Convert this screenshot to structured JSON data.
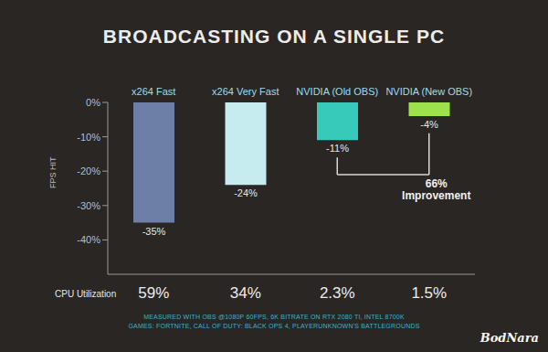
{
  "chart_data": {
    "type": "bar",
    "title": "BROADCASTING ON A SINGLE PC",
    "y_label": "FPS HIT",
    "categories": [
      "x264 Fast",
      "x264 Very Fast",
      "NVIDIA (Old OBS)",
      "NVIDIA (New OBS)"
    ],
    "values": [
      -35,
      -24,
      -11,
      -4
    ],
    "value_labels": [
      "-35%",
      "-24%",
      "-11%",
      "-4%"
    ],
    "colors": [
      "#6d7fa6",
      "#c6ecf0",
      "#37c9b9",
      "#9de24c"
    ],
    "ylim": [
      -50,
      0
    ],
    "yticks": [
      {
        "value": 0,
        "label": "0%"
      },
      {
        "value": -10,
        "label": "-10%"
      },
      {
        "value": -20,
        "label": "-20%"
      },
      {
        "value": -30,
        "label": "-30%"
      },
      {
        "value": -40,
        "label": "-40%"
      }
    ],
    "grid": false,
    "data_labels": true,
    "annotation": [
      "66%",
      "Improvement"
    ],
    "cpu_utilization": {
      "label": "CPU Utilization",
      "values": [
        59,
        34,
        2.3,
        1.5
      ],
      "value_labels": [
        "59%",
        "34%",
        "2.3%",
        "1.5%"
      ]
    },
    "notes": [
      "MEASURED WITH OBS @1080P 60FPS, 6K BITRATE ON RTX 2080 TI, INTEL 8700K",
      "GAMES: FORTNITE, CALL OF DUTY: BLACK OPS 4, PLAYERUNKNOWN'S BATTLEGROUNDS"
    ],
    "watermark": "BodNara"
  }
}
